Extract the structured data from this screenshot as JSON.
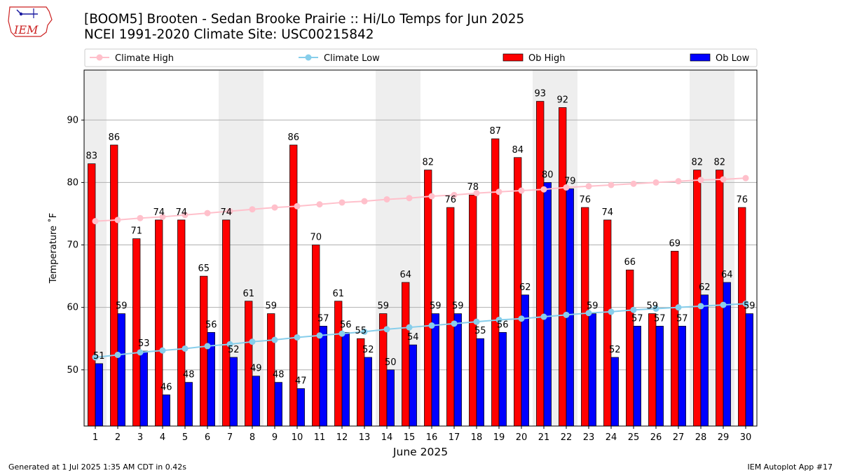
{
  "header": {
    "title_line1": "[BOOM5] Brooten - Sedan Brooke Prairie :: Hi/Lo Temps for Jun 2025",
    "title_line2": "NCEI 1991-2020 Climate Site: USC00215842",
    "logo_text": "IEM"
  },
  "footer": {
    "generated": "Generated at 1 Jul 2025 1:35 AM CDT in 0.42s",
    "app": "IEM Autoplot App #17"
  },
  "colors": {
    "ob_high": "#ff0000",
    "ob_low": "#0000ff",
    "climate_high": "#ffc0cb",
    "climate_low": "#87ceeb",
    "weekend_shade": "#eeeeee",
    "logo": "#cc2222"
  },
  "chart_data": {
    "type": "bar",
    "title": "[BOOM5] Brooten - Sedan Brooke Prairie :: Hi/Lo Temps for Jun 2025",
    "subtitle": "NCEI 1991-2020 Climate Site: USC00215842",
    "xlabel": "June 2025",
    "ylabel": "Temperature ˚F",
    "ylim": [
      41,
      98
    ],
    "yticks": [
      50,
      60,
      70,
      80,
      90
    ],
    "grid": "horizontal",
    "legend_position": "top",
    "categories": [
      "1",
      "2",
      "3",
      "4",
      "5",
      "6",
      "7",
      "8",
      "9",
      "10",
      "11",
      "12",
      "13",
      "14",
      "15",
      "16",
      "17",
      "18",
      "19",
      "20",
      "21",
      "22",
      "23",
      "24",
      "25",
      "26",
      "27",
      "28",
      "29",
      "30"
    ],
    "shaded_days": [
      1,
      7,
      8,
      14,
      15,
      21,
      22,
      28,
      29
    ],
    "series": [
      {
        "name": "Ob High",
        "kind": "bar",
        "values": [
          83,
          86,
          71,
          74,
          74,
          65,
          74,
          61,
          59,
          86,
          70,
          61,
          55,
          59,
          64,
          82,
          76,
          78,
          87,
          84,
          93,
          92,
          76,
          74,
          66,
          59,
          69,
          82,
          82,
          76
        ]
      },
      {
        "name": "Ob Low",
        "kind": "bar",
        "values": [
          51,
          59,
          53,
          46,
          48,
          56,
          52,
          49,
          48,
          47,
          57,
          56,
          52,
          50,
          54,
          59,
          59,
          55,
          56,
          62,
          80,
          79,
          59,
          52,
          57,
          57,
          57,
          62,
          64,
          59
        ]
      },
      {
        "name": "Climate High",
        "kind": "line",
        "values": [
          73.8,
          74.0,
          74.3,
          74.5,
          74.8,
          75.1,
          75.4,
          75.7,
          76.0,
          76.2,
          76.5,
          76.8,
          77.0,
          77.3,
          77.5,
          77.8,
          78.0,
          78.3,
          78.5,
          78.7,
          78.9,
          79.2,
          79.4,
          79.6,
          79.8,
          80.0,
          80.2,
          80.4,
          80.5,
          80.7
        ]
      },
      {
        "name": "Climate Low",
        "kind": "line",
        "values": [
          52.0,
          52.4,
          52.8,
          53.1,
          53.4,
          53.8,
          54.1,
          54.5,
          54.8,
          55.2,
          55.5,
          55.8,
          56.1,
          56.5,
          56.8,
          57.1,
          57.4,
          57.7,
          58.0,
          58.2,
          58.5,
          58.8,
          59.1,
          59.3,
          59.6,
          59.8,
          60.0,
          60.2,
          60.4,
          60.6
        ]
      }
    ],
    "labels": {
      "high": [
        "83",
        "86",
        "71",
        "74",
        "74",
        "65",
        "74",
        "61",
        "59",
        "86",
        "70",
        "61",
        "55",
        "59",
        "64",
        "82",
        "76",
        "78",
        "87",
        "84",
        "93",
        "92",
        "76",
        "74",
        "66",
        "59",
        "69",
        "82",
        "82",
        "76"
      ],
      "low": [
        "51",
        "59",
        "53",
        "46",
        "48",
        "56",
        "52",
        "49",
        "48",
        "47",
        "57",
        "56",
        "52",
        "50",
        "54",
        "59",
        "59",
        "55",
        "56",
        "62",
        "80",
        "79",
        "59",
        "52",
        "57",
        "57",
        "57",
        "62",
        "64",
        "59"
      ]
    }
  }
}
